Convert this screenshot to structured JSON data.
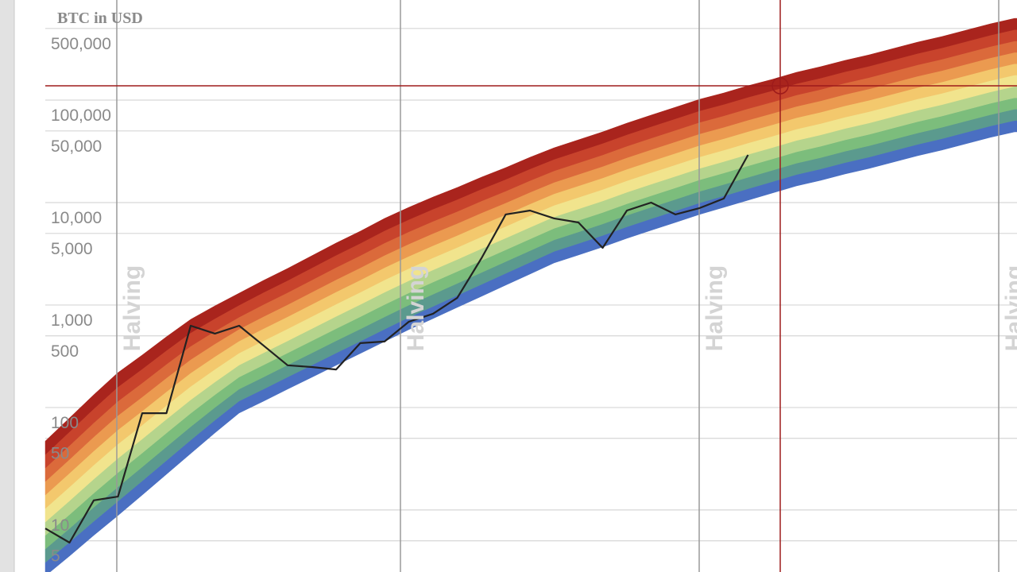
{
  "chart_data": {
    "type": "line",
    "title": "BTC in USD",
    "categories": [
      null,
      null,
      null,
      null,
      null,
      null,
      null,
      null,
      null,
      null,
      null,
      null,
      null,
      null,
      null,
      null,
      null,
      null,
      null,
      null,
      null,
      null,
      null,
      null,
      null,
      null,
      null,
      null,
      null,
      null,
      null,
      null,
      null,
      null,
      null,
      null,
      null,
      null,
      null,
      null,
      null
    ],
    "series": [
      {
        "color": "#222222",
        "values": [
          6.6,
          4.8,
          12.4,
          13.5,
          88,
          88,
          628,
          526,
          628,
          403,
          258,
          248,
          235,
          425,
          440,
          687,
          822,
          1175,
          2865,
          7656,
          8360,
          7000,
          6397,
          3614,
          8360,
          10000,
          7656,
          8840,
          10950,
          29170,
          null,
          null,
          null,
          null,
          null,
          null,
          null,
          null,
          null,
          null,
          null
        ]
      }
    ],
    "rainbow": {
      "colors": [
        "#4a6fc2",
        "#5b9a8e",
        "#7cbd7c",
        "#b5d48c",
        "#f1e48d",
        "#f3c86d",
        "#eb9a50",
        "#db6a3b",
        "#c8432c",
        "#a9241d"
      ],
      "lower": [
        2.27,
        3.55,
        5.65,
        8.83,
        14,
        22.3,
        35.5,
        56.5,
        88.3,
        115,
        151,
        197,
        258,
        337,
        440,
        575,
        738,
        948,
        1216,
        1563,
        2005,
        2576,
        3076,
        3681,
        4477,
        5358,
        6397,
        7656,
        8980,
        10540,
        12390,
        14550,
        16480,
        19010,
        21530,
        24850,
        28650,
        32510,
        37500,
        43250,
        48980
      ],
      "upper": [
        47,
        79,
        133,
        219,
        325,
        490,
        725,
        982,
        1306,
        1738,
        2275,
        3027,
        4027,
        5260,
        7000,
        8980,
        11320,
        14030,
        17700,
        21930,
        27670,
        34280,
        40930,
        48980,
        59570,
        71290,
        85110,
        101800,
        117500,
        138000,
        159200,
        186600,
        211800,
        244300,
        276700,
        319200,
        368100,
        416900,
        480800,
        554600,
        628100
      ]
    },
    "ylim": [
      2.48,
      948000
    ],
    "yticks": [
      5,
      10,
      50,
      100,
      500,
      {
        "value": 1000,
        "label": "1,000"
      },
      {
        "value": 5000,
        "label": "5,000"
      },
      {
        "value": 10000,
        "label": "10,000"
      },
      {
        "value": 50000,
        "label": "50,000"
      },
      {
        "value": 100000,
        "label": "100,000"
      },
      {
        "value": 500000,
        "label": "500,000"
      }
    ],
    "log": true,
    "grid": true,
    "annotations": [
      "Halving",
      "Halving",
      "Halving",
      "Halving"
    ]
  }
}
